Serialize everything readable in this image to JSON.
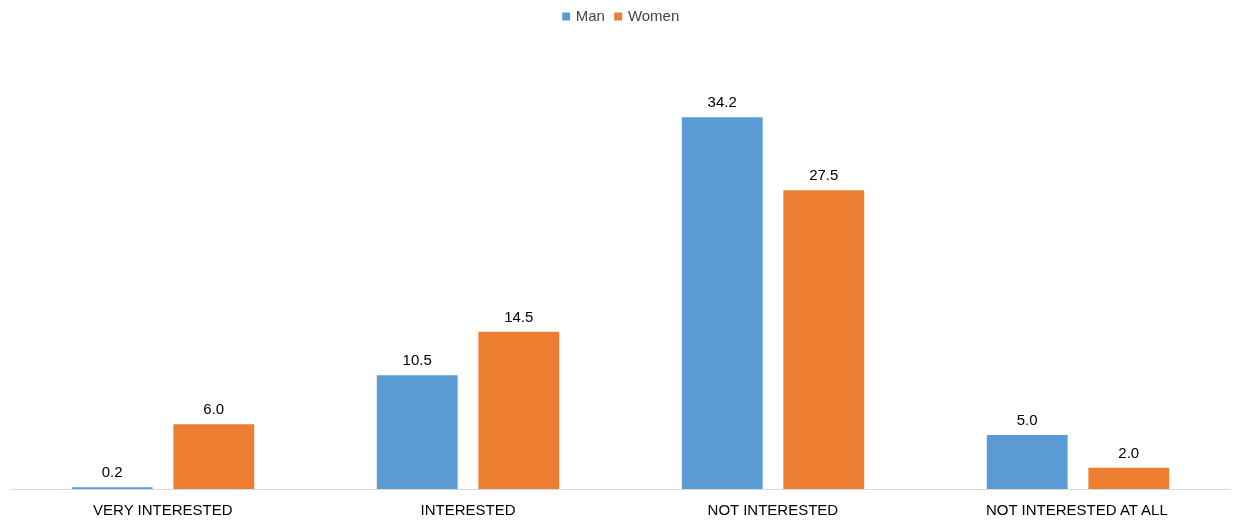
{
  "chart_data": {
    "type": "bar",
    "categories": [
      "VERY INTERESTED",
      "INTERESTED",
      "NOT INTERESTED",
      "NOT INTERESTED AT ALL"
    ],
    "series": [
      {
        "name": "Man",
        "color": "#5b9bd5",
        "values": [
          0.2,
          10.5,
          34.2,
          5.0
        ],
        "value_labels": [
          "0.2",
          "10.5",
          "34.2",
          "5.0"
        ]
      },
      {
        "name": "Women",
        "color": "#ed7d31",
        "values": [
          6.0,
          14.5,
          27.5,
          2.0
        ],
        "value_labels": [
          "6.0",
          "14.5",
          "27.5",
          "2.0"
        ]
      }
    ],
    "legend": "top",
    "grid": false
  }
}
